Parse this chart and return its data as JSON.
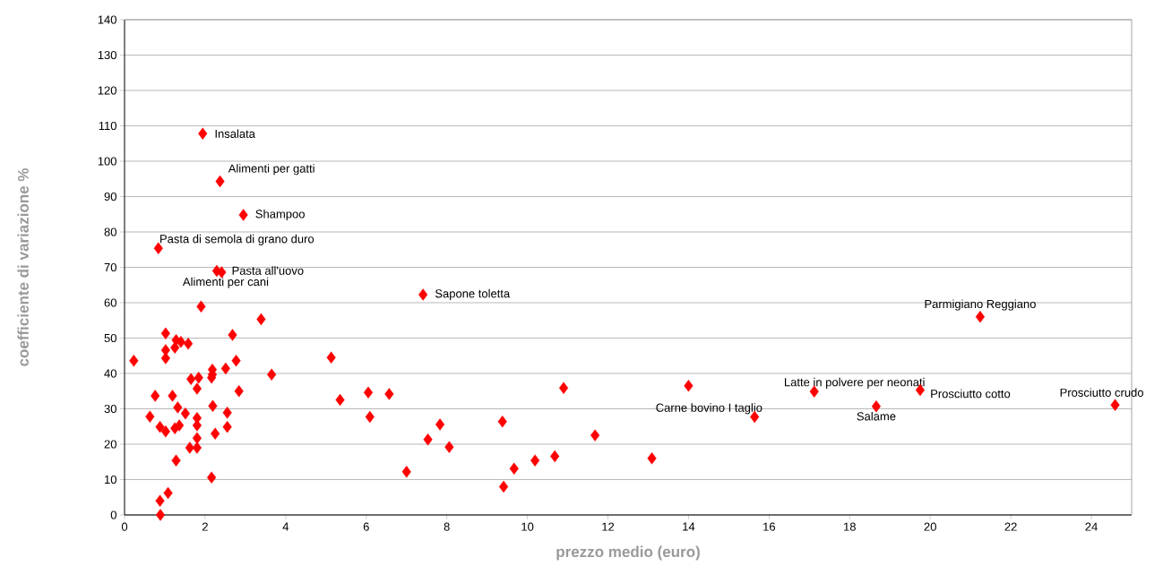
{
  "chart_data": {
    "type": "scatter",
    "xlabel": "prezzo medio (euro)",
    "ylabel": "coefficiente di variazione %",
    "color": "#ff0000",
    "marker": "diamond",
    "grid": "y",
    "xlim": [
      0,
      25
    ],
    "xticks": [
      0,
      2,
      4,
      6,
      8,
      10,
      12,
      14,
      16,
      18,
      20,
      22,
      24
    ],
    "ylim": [
      0,
      140
    ],
    "yticks": [
      0,
      10,
      20,
      30,
      40,
      50,
      60,
      70,
      80,
      90,
      100,
      110,
      120,
      130,
      140
    ],
    "x": [
      1.9,
      3.39,
      1.02,
      2.68,
      1.28,
      1.4,
      1.58,
      1.25,
      1.02,
      0.23,
      1.02,
      2.77,
      2.51,
      2.18,
      3.65,
      1.65,
      1.84,
      2.18,
      2.16,
      1.8,
      2.84,
      0.76,
      1.19,
      1.32,
      1.51,
      2.19,
      0.63,
      2.55,
      1.8,
      1.8,
      0.88,
      1.02,
      1.25,
      1.36,
      2.55,
      2.25,
      1.8,
      1.62,
      1.8,
      1.28,
      2.16,
      1.08,
      0.88,
      0.89,
      5.13,
      5.35,
      6.05,
      6.57,
      6.09,
      10.9,
      7.83,
      9.38,
      7.53,
      8.06,
      11.68,
      7.0,
      9.67,
      10.19,
      10.68,
      9.41,
      13.09,
      14.0,
      1.94,
      2.37,
      2.95,
      0.84,
      2.41,
      2.29,
      7.41,
      21.24,
      17.12,
      15.64,
      18.66,
      19.75,
      24.59
    ],
    "values": [
      58.9,
      55.3,
      51.3,
      50.9,
      49.4,
      48.9,
      48.4,
      47.3,
      46.6,
      43.6,
      44.3,
      43.6,
      41.4,
      41.1,
      39.7,
      38.4,
      38.8,
      39.7,
      38.8,
      35.7,
      35.0,
      33.7,
      33.7,
      30.4,
      28.7,
      30.8,
      27.8,
      28.9,
      27.4,
      25.3,
      24.9,
      23.6,
      24.5,
      25.3,
      24.9,
      23.0,
      21.7,
      19.0,
      19.0,
      15.4,
      10.6,
      6.2,
      4.0,
      0,
      44.5,
      32.5,
      34.6,
      34.2,
      27.7,
      35.9,
      25.6,
      26.4,
      21.3,
      19.2,
      22.5,
      12.2,
      13.1,
      15.4,
      16.6,
      8.0,
      16.0,
      36.5,
      107.8,
      94.3,
      84.8,
      75.4,
      68.6,
      69.0,
      62.3,
      56.0,
      34.9,
      27.7,
      30.7,
      35.3,
      31.1
    ],
    "annotations": [
      {
        "text": "Insalata",
        "x": 1.94,
        "y": 107.8
      },
      {
        "text": "Alimenti per gatti",
        "x": 2.37,
        "y": 94.3
      },
      {
        "text": "Shampoo",
        "x": 2.95,
        "y": 84.8
      },
      {
        "text": "Pasta di semola di grano duro",
        "x": 0.84,
        "y": 75.4
      },
      {
        "text": "Pasta all'uovo",
        "x": 2.41,
        "y": 68.6
      },
      {
        "text": "Alimenti per cani",
        "x": 2.29,
        "y": 69.0
      },
      {
        "text": "Sapone toletta",
        "x": 7.41,
        "y": 62.3
      },
      {
        "text": "Parmigiano Reggiano",
        "x": 21.24,
        "y": 56.0
      },
      {
        "text": "Latte in polvere per neonati",
        "x": 17.12,
        "y": 34.9
      },
      {
        "text": "Carne bovino I taglio",
        "x": 15.64,
        "y": 27.7
      },
      {
        "text": "Salame",
        "x": 18.66,
        "y": 30.7
      },
      {
        "text": "Prosciutto cotto",
        "x": 19.75,
        "y": 35.3
      },
      {
        "text": "Prosciutto crudo",
        "x": 24.59,
        "y": 31.1
      }
    ]
  }
}
